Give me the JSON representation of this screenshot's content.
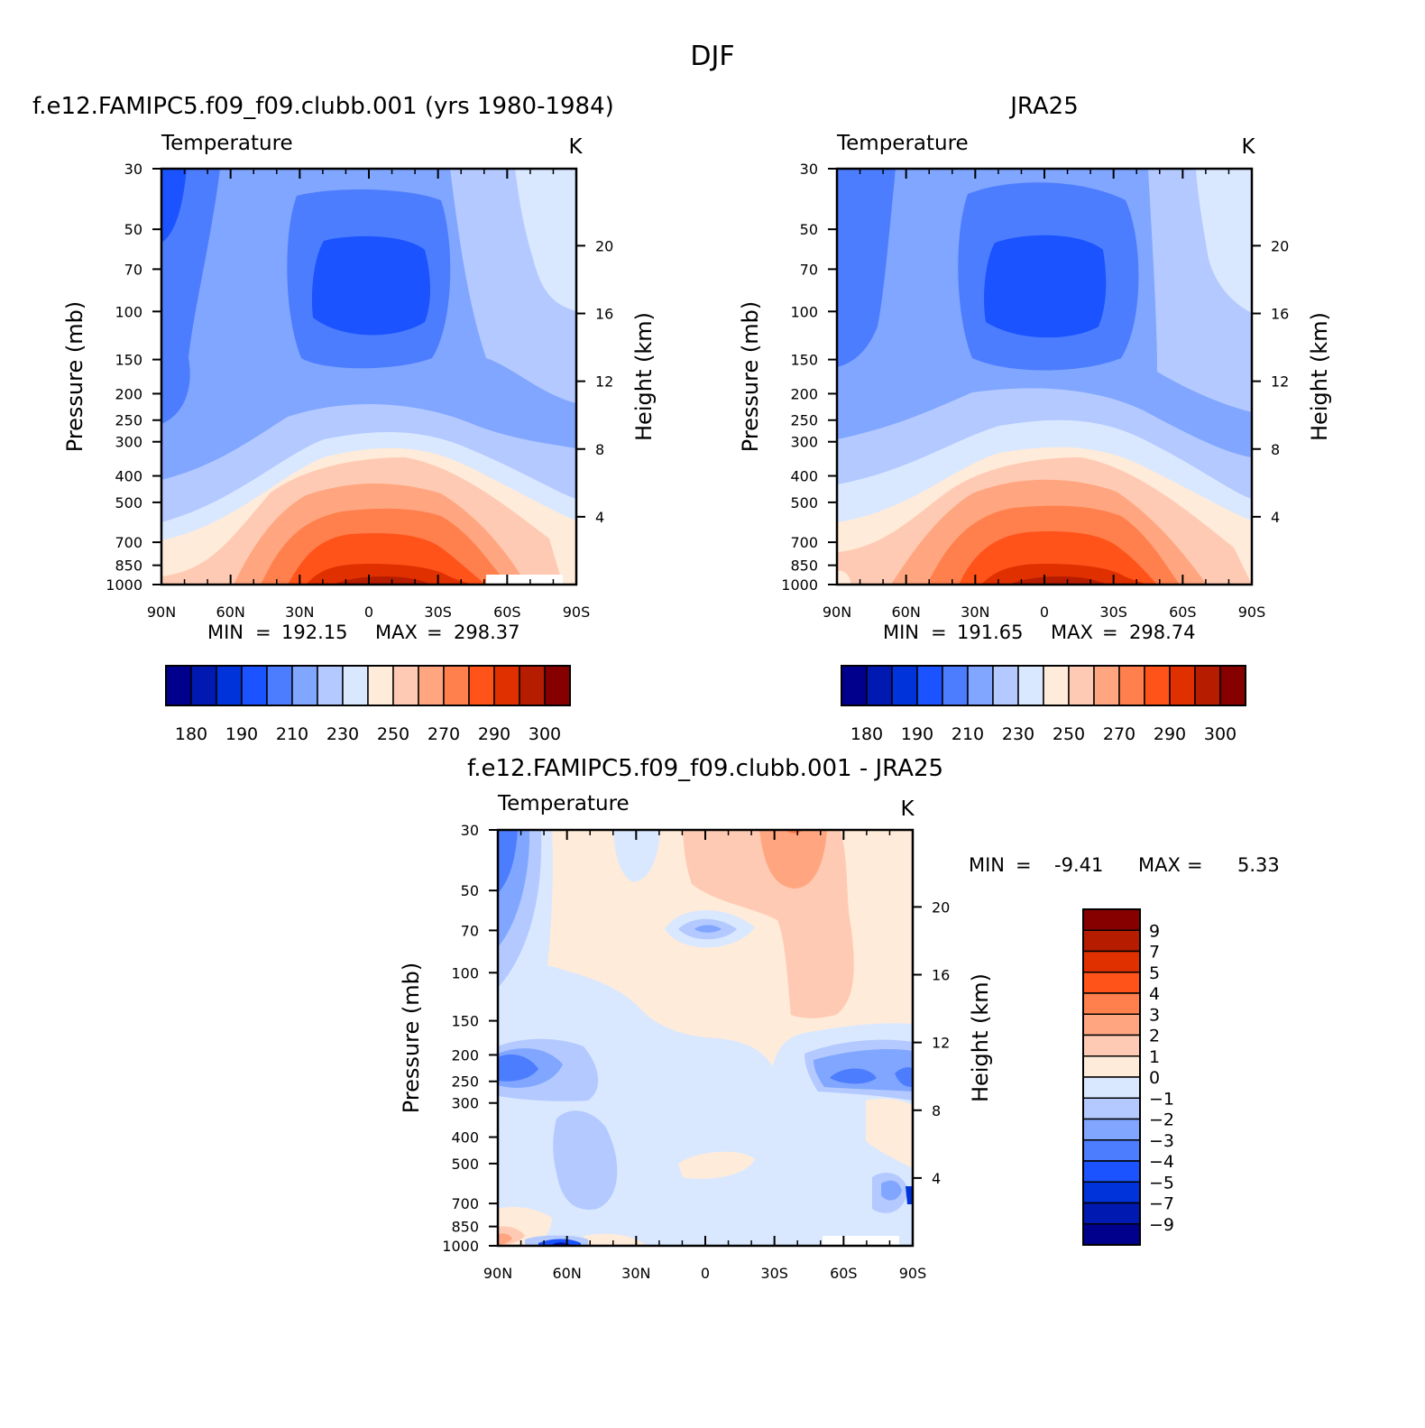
{
  "figure": {
    "title": "DJF"
  },
  "panels": [
    {
      "id": "model",
      "title": "f.e12.FAMIPC5.f09_f09.clubb.001 (yrs 1980-1984)",
      "left_label": "Temperature",
      "right_label": "K",
      "ylabel": "Pressure (mb)",
      "y2label": "Height (km)",
      "min_label": "MIN",
      "max_label": "MAX",
      "min": "192.15",
      "max": "298.37"
    },
    {
      "id": "obs",
      "title": "JRA25",
      "left_label": "Temperature",
      "right_label": "K",
      "ylabel": "Pressure (mb)",
      "y2label": "Height (km)",
      "min_label": "MIN",
      "max_label": "MAX",
      "min": "191.65",
      "max": "298.74"
    },
    {
      "id": "diff",
      "title": "f.e12.FAMIPC5.f09_f09.clubb.001 - JRA25",
      "left_label": "Temperature",
      "right_label": "K",
      "ylabel": "Pressure (mb)",
      "y2label": "Height (km)",
      "min_label": "MIN",
      "max_label": "MAX",
      "min": "-9.41",
      "max": "5.33"
    }
  ],
  "chart_data": [
    {
      "type": "heatmap",
      "panel": "model",
      "x_tick_labels": [
        "90N",
        "60N",
        "30N",
        "0",
        "30S",
        "60S",
        "90S"
      ],
      "x_lat": [
        90,
        60,
        30,
        0,
        -30,
        -60,
        -90
      ],
      "y_tick_labels": [
        "30",
        "50",
        "70",
        "100",
        "150",
        "200",
        "250",
        "300",
        "400",
        "500",
        "700",
        "850",
        "1000"
      ],
      "y_pressure": [
        30,
        50,
        70,
        100,
        150,
        200,
        250,
        300,
        400,
        500,
        700,
        850,
        1000
      ],
      "y_log_scale": true,
      "y2_ticks": [
        20,
        16,
        12,
        8,
        4
      ],
      "contour_levels": [
        180,
        185,
        190,
        200,
        210,
        220,
        230,
        240,
        250,
        260,
        270,
        280,
        290,
        295,
        300
      ],
      "colorbar_labels": [
        "180",
        "190",
        "210",
        "230",
        "250",
        "270",
        "290",
        "300"
      ],
      "min": 192.15,
      "max": 298.37
    },
    {
      "type": "heatmap",
      "panel": "obs",
      "x_tick_labels": [
        "90N",
        "60N",
        "30N",
        "0",
        "30S",
        "60S",
        "90S"
      ],
      "x_lat": [
        90,
        60,
        30,
        0,
        -30,
        -60,
        -90
      ],
      "y_tick_labels": [
        "30",
        "50",
        "70",
        "100",
        "150",
        "200",
        "250",
        "300",
        "400",
        "500",
        "700",
        "850",
        "1000"
      ],
      "y_pressure": [
        30,
        50,
        70,
        100,
        150,
        200,
        250,
        300,
        400,
        500,
        700,
        850,
        1000
      ],
      "y_log_scale": true,
      "y2_ticks": [
        20,
        16,
        12,
        8,
        4
      ],
      "contour_levels": [
        180,
        185,
        190,
        200,
        210,
        220,
        230,
        240,
        250,
        260,
        270,
        280,
        290,
        295,
        300
      ],
      "colorbar_labels": [
        "180",
        "190",
        "210",
        "230",
        "250",
        "270",
        "290",
        "300"
      ],
      "min": 191.65,
      "max": 298.74
    },
    {
      "type": "heatmap",
      "panel": "diff",
      "x_tick_labels": [
        "90N",
        "60N",
        "30N",
        "0",
        "30S",
        "60S",
        "90S"
      ],
      "x_lat": [
        90,
        60,
        30,
        0,
        -30,
        -60,
        -90
      ],
      "y_tick_labels": [
        "30",
        "50",
        "70",
        "100",
        "150",
        "200",
        "250",
        "300",
        "400",
        "500",
        "700",
        "850",
        "1000"
      ],
      "y_pressure": [
        30,
        50,
        70,
        100,
        150,
        200,
        250,
        300,
        400,
        500,
        700,
        850,
        1000
      ],
      "y_log_scale": true,
      "y2_ticks": [
        20,
        16,
        12,
        8,
        4
      ],
      "contour_levels": [
        -9,
        -7,
        -5,
        -4,
        -3,
        -2,
        -1,
        0,
        1,
        2,
        3,
        4,
        5,
        7,
        9
      ],
      "colorbar_labels": [
        "9",
        "7",
        "5",
        "4",
        "3",
        "2",
        "1",
        "0",
        "−1",
        "−2",
        "−3",
        "−4",
        "−5",
        "−7",
        "−9"
      ],
      "min": -9.41,
      "max": 5.33
    }
  ],
  "colors": {
    "abs_scale": [
      "#00008c",
      "#0019b0",
      "#0033d9",
      "#1a53ff",
      "#4d7dff",
      "#80a6ff",
      "#b3c9ff",
      "#d9e8ff",
      "#ffebd9",
      "#ffcab3",
      "#ffa680",
      "#ff804d",
      "#ff531a",
      "#e03000",
      "#b51c00",
      "#870000"
    ],
    "diff_scale": [
      "#870000",
      "#b51c00",
      "#e03000",
      "#ff531a",
      "#ff804d",
      "#ffa680",
      "#ffcab3",
      "#ffebd9",
      "#d9e8ff",
      "#b3c9ff",
      "#80a6ff",
      "#4d7dff",
      "#1a53ff",
      "#0033d9",
      "#0019b0",
      "#00008c"
    ]
  }
}
